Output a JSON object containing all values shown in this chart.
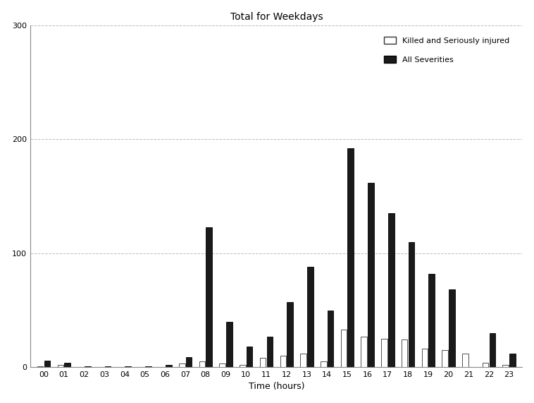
{
  "title": "Total for Weekdays",
  "xlabel": "Time (hours)",
  "ylabel": "",
  "ylim": [
    0,
    300
  ],
  "yticks": [
    0,
    100,
    200,
    300
  ],
  "hours": [
    "00",
    "01",
    "02",
    "03",
    "04",
    "05",
    "06",
    "07",
    "08",
    "09",
    "10",
    "11",
    "12",
    "13",
    "14",
    "15",
    "16",
    "17",
    "18",
    "19",
    "20",
    "21",
    "22",
    "23"
  ],
  "ksi": [
    1,
    2,
    0,
    0,
    0,
    0,
    0,
    3,
    5,
    3,
    2,
    8,
    10,
    12,
    5,
    33,
    27,
    25,
    24,
    16,
    15,
    12,
    4,
    2
  ],
  "all_sev": [
    6,
    4,
    1,
    1,
    1,
    1,
    2,
    9,
    123,
    40,
    18,
    27,
    57,
    88,
    50,
    192,
    162,
    135,
    110,
    82,
    68,
    0,
    30,
    12
  ],
  "bar_color_ksi": "#ffffff",
  "bar_color_all": "#1a1a1a",
  "bar_edge_ksi": "#333333",
  "bar_edge_all": "#000000",
  "grid_color": "#bbbbbb",
  "background_color": "#ffffff",
  "legend_ksi": "Killed and Seriously injured",
  "legend_all": "All Severities",
  "title_fontsize": 10,
  "axis_fontsize": 9,
  "tick_fontsize": 8
}
